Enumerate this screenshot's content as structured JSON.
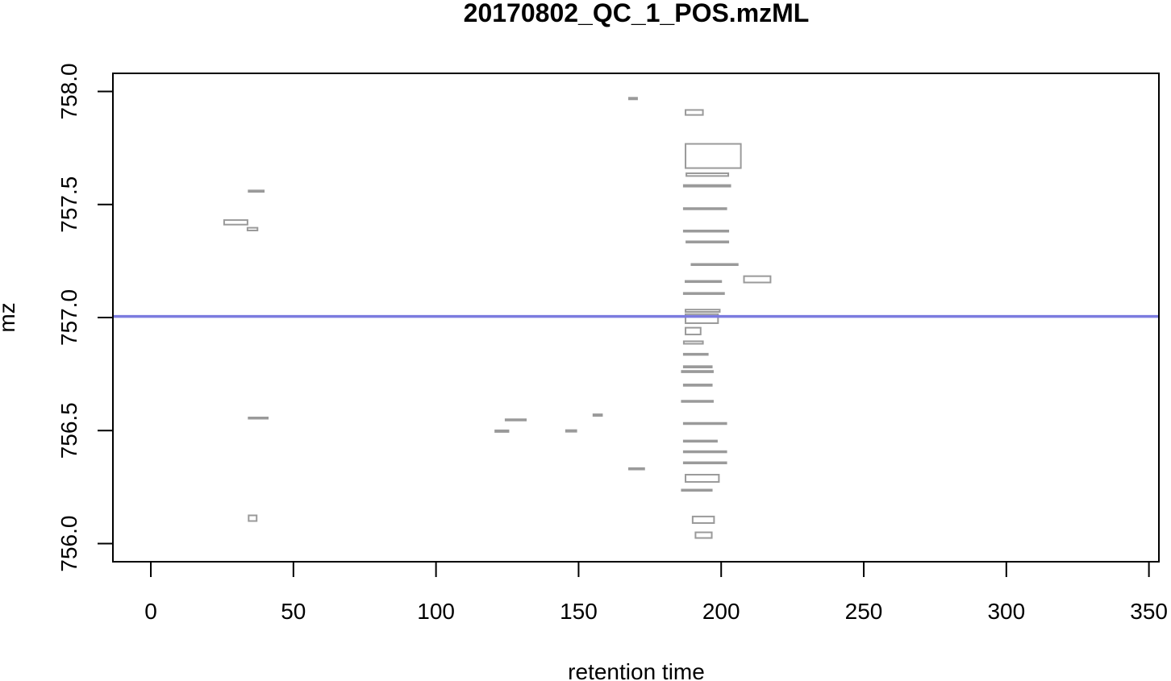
{
  "chart_data": {
    "type": "rect-plot",
    "title": "20170802_QC_1_POS.mzML",
    "xlabel": "retention time",
    "ylabel": "mz",
    "xlim": [
      -13.3,
      353.5
    ],
    "ylim": [
      755.92,
      758.08
    ],
    "xticks": [
      0,
      50,
      100,
      150,
      200,
      250,
      300,
      350
    ],
    "xtick_labels": [
      "0",
      "50",
      "100",
      "150",
      "200",
      "250",
      "300",
      "350"
    ],
    "yticks": [
      756.0,
      756.5,
      757.0,
      757.5,
      758.0
    ],
    "ytick_labels": [
      "756.0",
      "756.5",
      "757.0",
      "757.5",
      "758.0"
    ],
    "hline": {
      "y": 757.005,
      "color": "#7b7bdf"
    },
    "rect_color": "#9a9a9a",
    "rects": [
      {
        "x0": 167.7,
        "x1": 170.5,
        "y0": 757.965,
        "y1": 757.972
      },
      {
        "x0": 187.5,
        "x1": 193.6,
        "y0": 757.896,
        "y1": 757.918
      },
      {
        "x0": 187.5,
        "x1": 206.9,
        "y0": 757.661,
        "y1": 757.768
      },
      {
        "x0": 187.8,
        "x1": 202.5,
        "y0": 757.626,
        "y1": 757.638
      },
      {
        "x0": 186.9,
        "x1": 203.2,
        "y0": 757.579,
        "y1": 757.586
      },
      {
        "x0": 186.9,
        "x1": 201.8,
        "y0": 757.479,
        "y1": 757.484
      },
      {
        "x0": 186.9,
        "x1": 202.5,
        "y0": 757.38,
        "y1": 757.385
      },
      {
        "x0": 187.8,
        "x1": 202.5,
        "y0": 757.334,
        "y1": 757.337
      },
      {
        "x0": 189.6,
        "x1": 205.8,
        "y0": 757.233,
        "y1": 757.237
      },
      {
        "x0": 208.0,
        "x1": 217.3,
        "y0": 757.155,
        "y1": 757.183
      },
      {
        "x0": 187.5,
        "x1": 200.0,
        "y0": 757.159,
        "y1": 757.162
      },
      {
        "x0": 186.9,
        "x1": 201.0,
        "y0": 757.104,
        "y1": 757.109
      },
      {
        "x0": 187.5,
        "x1": 199.5,
        "y0": 757.025,
        "y1": 757.035
      },
      {
        "x0": 187.5,
        "x1": 198.9,
        "y0": 756.975,
        "y1": 757.015
      },
      {
        "x0": 187.5,
        "x1": 192.8,
        "y0": 756.925,
        "y1": 756.955
      },
      {
        "x0": 186.9,
        "x1": 193.6,
        "y0": 756.884,
        "y1": 756.895
      },
      {
        "x0": 186.9,
        "x1": 195.3,
        "y0": 756.835,
        "y1": 756.84
      },
      {
        "x0": 186.9,
        "x1": 196.7,
        "y0": 756.779,
        "y1": 756.785
      },
      {
        "x0": 186.2,
        "x1": 197.1,
        "y0": 756.758,
        "y1": 756.764
      },
      {
        "x0": 186.9,
        "x1": 196.7,
        "y0": 756.698,
        "y1": 756.704
      },
      {
        "x0": 186.2,
        "x1": 197.1,
        "y0": 756.627,
        "y1": 756.632
      },
      {
        "x0": 186.9,
        "x1": 201.8,
        "y0": 756.529,
        "y1": 756.534
      },
      {
        "x0": 186.9,
        "x1": 198.5,
        "y0": 756.451,
        "y1": 756.456
      },
      {
        "x0": 186.9,
        "x1": 201.8,
        "y0": 756.404,
        "y1": 756.409
      },
      {
        "x0": 186.9,
        "x1": 201.8,
        "y0": 756.355,
        "y1": 756.36
      },
      {
        "x0": 187.5,
        "x1": 199.2,
        "y0": 756.273,
        "y1": 756.305
      },
      {
        "x0": 186.2,
        "x1": 196.7,
        "y0": 756.234,
        "y1": 756.239
      },
      {
        "x0": 190.0,
        "x1": 197.5,
        "y0": 756.091,
        "y1": 756.12
      },
      {
        "x0": 191.0,
        "x1": 196.7,
        "y0": 756.025,
        "y1": 756.05
      },
      {
        "x0": 167.7,
        "x1": 173.0,
        "y0": 756.328,
        "y1": 756.334
      },
      {
        "x0": 155.2,
        "x1": 158.2,
        "y0": 756.565,
        "y1": 756.572
      },
      {
        "x0": 145.6,
        "x1": 149.2,
        "y0": 756.495,
        "y1": 756.502
      },
      {
        "x0": 124.4,
        "x1": 131.5,
        "y0": 756.546,
        "y1": 756.55
      },
      {
        "x0": 120.8,
        "x1": 125.4,
        "y0": 756.494,
        "y1": 756.501
      },
      {
        "x0": 34.3,
        "x1": 39.6,
        "y0": 757.556,
        "y1": 757.562
      },
      {
        "x0": 25.7,
        "x1": 33.9,
        "y0": 757.411,
        "y1": 757.431
      },
      {
        "x0": 33.9,
        "x1": 37.4,
        "y0": 757.385,
        "y1": 757.397
      },
      {
        "x0": 34.3,
        "x1": 41.0,
        "y0": 756.555,
        "y1": 756.558
      },
      {
        "x0": 34.3,
        "x1": 37.1,
        "y0": 756.1,
        "y1": 756.125
      }
    ]
  }
}
